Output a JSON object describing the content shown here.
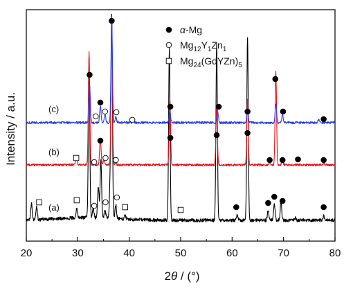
{
  "chart_data": {
    "type": "line",
    "xlabel": "2θ / (°)",
    "ylabel": "Intensity / a.u.",
    "xlim": [
      20,
      80
    ],
    "xticks": [
      20,
      30,
      40,
      50,
      60,
      70,
      80
    ],
    "y_ticks_shown": false,
    "grid": false,
    "legend_position": "top-right",
    "legend": [
      {
        "marker": "filled-circle",
        "html": "<tspan font-style='italic'>α</tspan>-Mg"
      },
      {
        "marker": "open-circle",
        "html": "Mg<tspan dy='4' font-size='10'>12</tspan><tspan dy='-4'>Y</tspan><tspan dy='4' font-size='10'>1</tspan><tspan dy='-4'>Zn</tspan><tspan dy='4' font-size='10'>1</tspan>"
      },
      {
        "marker": "open-square",
        "html": "Mg<tspan dy='4' font-size='10'>24</tspan><tspan dy='-4'>(GdYZn)</tspan><tspan dy='4' font-size='10'>5</tspan>"
      }
    ],
    "series": [
      {
        "name": "(a)",
        "color": "#000000",
        "baseline": 318,
        "peaks": [
          {
            "x": 21.0,
            "h": 24
          },
          {
            "x": 22.0,
            "h": 18
          },
          {
            "x": 29.8,
            "h": 14
          },
          {
            "x": 32.2,
            "h": 220
          },
          {
            "x": 33.0,
            "h": 14
          },
          {
            "x": 34.0,
            "h": 46
          },
          {
            "x": 34.5,
            "h": 82
          },
          {
            "x": 35.3,
            "h": 12
          },
          {
            "x": 36.3,
            "h": 48
          },
          {
            "x": 36.6,
            "h": 290
          },
          {
            "x": 37.4,
            "h": 20
          },
          {
            "x": 39.2,
            "h": 6
          },
          {
            "x": 47.8,
            "h": 246
          },
          {
            "x": 57.0,
            "h": 255
          },
          {
            "x": 61.0,
            "h": 8
          },
          {
            "x": 63.0,
            "h": 266
          },
          {
            "x": 67.0,
            "h": 14
          },
          {
            "x": 68.2,
            "h": 25
          },
          {
            "x": 69.5,
            "h": 28
          },
          {
            "x": 72.3,
            "h": 4
          },
          {
            "x": 77.8,
            "h": 6
          }
        ],
        "markers": [
          {
            "x": 22.5,
            "y": 292,
            "type": "open-square"
          },
          {
            "x": 29.8,
            "y": 289,
            "type": "open-square"
          },
          {
            "x": 33.2,
            "y": 297,
            "type": "open-circle"
          },
          {
            "x": 35.4,
            "y": 292,
            "type": "open-circle"
          },
          {
            "x": 37.6,
            "y": 285,
            "type": "open-circle"
          },
          {
            "x": 39.2,
            "y": 299,
            "type": "open-square"
          },
          {
            "x": 50.0,
            "y": 303,
            "type": "open-square"
          },
          {
            "x": 60.8,
            "y": 299,
            "type": "filled-circle"
          },
          {
            "x": 67.0,
            "y": 293,
            "type": "filled-circle"
          },
          {
            "x": 68.2,
            "y": 284,
            "type": "filled-circle"
          },
          {
            "x": 69.8,
            "y": 290,
            "type": "filled-circle"
          },
          {
            "x": 77.8,
            "y": 299,
            "type": "filled-circle"
          }
        ]
      },
      {
        "name": "(b)",
        "color": "#e6121b",
        "baseline": 238,
        "peaks": [
          {
            "x": 29.7,
            "h": 10
          },
          {
            "x": 32.2,
            "h": 162
          },
          {
            "x": 34.4,
            "h": 38
          },
          {
            "x": 35.1,
            "h": 8
          },
          {
            "x": 36.6,
            "h": 208
          },
          {
            "x": 37.4,
            "h": 4
          },
          {
            "x": 47.9,
            "h": 95
          },
          {
            "x": 57.0,
            "h": 86
          },
          {
            "x": 63.0,
            "h": 96
          },
          {
            "x": 67.3,
            "h": 3
          },
          {
            "x": 68.5,
            "h": 135
          },
          {
            "x": 69.8,
            "h": 6
          },
          {
            "x": 77.8,
            "h": 3
          }
        ],
        "markers": [
          {
            "x": 29.7,
            "y": 228,
            "type": "open-square"
          },
          {
            "x": 33.2,
            "y": 234,
            "type": "open-circle"
          },
          {
            "x": 34.4,
            "y": 203,
            "type": "filled-circle"
          },
          {
            "x": 35.4,
            "y": 228,
            "type": "open-circle"
          },
          {
            "x": 37.4,
            "y": 231,
            "type": "open-circle"
          },
          {
            "x": 48.0,
            "y": 199,
            "type": "filled-circle"
          },
          {
            "x": 57.0,
            "y": 195,
            "type": "filled-circle"
          },
          {
            "x": 63.0,
            "y": 192,
            "type": "filled-circle"
          },
          {
            "x": 67.3,
            "y": 231,
            "type": "filled-circle"
          },
          {
            "x": 69.8,
            "y": 231,
            "type": "filled-circle"
          },
          {
            "x": 72.8,
            "y": 230,
            "type": "filled-circle"
          },
          {
            "x": 77.8,
            "y": 231,
            "type": "filled-circle"
          }
        ]
      },
      {
        "name": "(c)",
        "color": "#2a3ee6",
        "baseline": 177,
        "peaks": [
          {
            "x": 32.3,
            "h": 56
          },
          {
            "x": 34.4,
            "h": 24
          },
          {
            "x": 35.3,
            "h": 13
          },
          {
            "x": 36.6,
            "h": 152
          },
          {
            "x": 37.4,
            "h": 8
          },
          {
            "x": 40.8,
            "h": 3
          },
          {
            "x": 47.9,
            "h": 18
          },
          {
            "x": 57.2,
            "h": 15
          },
          {
            "x": 63.0,
            "h": 18
          },
          {
            "x": 68.5,
            "h": 27
          },
          {
            "x": 69.8,
            "h": 12
          },
          {
            "x": 76.8,
            "h": 5
          }
        ],
        "markers": [
          {
            "x": 32.3,
            "y": 108,
            "type": "filled-circle"
          },
          {
            "x": 33.5,
            "y": 168,
            "type": "open-circle"
          },
          {
            "x": 34.4,
            "y": 148,
            "type": "filled-circle"
          },
          {
            "x": 35.3,
            "y": 161,
            "type": "open-circle"
          },
          {
            "x": 36.6,
            "y": 30,
            "type": "filled-circle"
          },
          {
            "x": 37.5,
            "y": 162,
            "type": "open-circle"
          },
          {
            "x": 40.6,
            "y": 173,
            "type": "open-circle"
          },
          {
            "x": 48.0,
            "y": 154,
            "type": "filled-circle"
          },
          {
            "x": 57.4,
            "y": 154,
            "type": "filled-circle"
          },
          {
            "x": 63.0,
            "y": 161,
            "type": "filled-circle"
          },
          {
            "x": 68.4,
            "y": 114,
            "type": "filled-circle"
          },
          {
            "x": 69.9,
            "y": 161,
            "type": "filled-circle"
          },
          {
            "x": 77.8,
            "y": 172,
            "type": "filled-circle"
          }
        ]
      }
    ]
  }
}
